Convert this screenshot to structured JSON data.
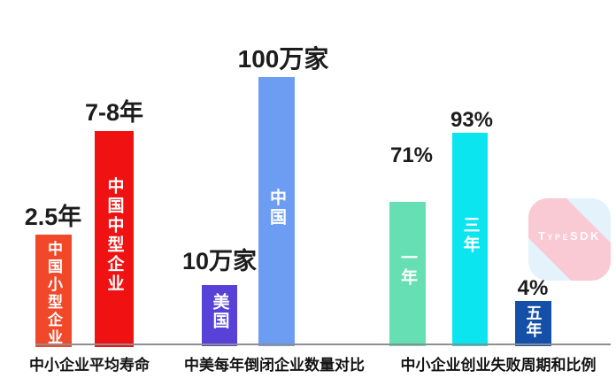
{
  "page": {
    "background": "#ffffff",
    "axis_line_color": "#8e8e8e"
  },
  "chart_data": {
    "type": "bar",
    "title": "",
    "orientation": "vertical",
    "grid": false,
    "legend": false,
    "groups": [
      {
        "axis_label": "中小企业平均寿命",
        "bars": [
          {
            "value_label": "2.5年",
            "value": 2.5,
            "unit": "年",
            "bar_label": "中国小型企业",
            "color": "#f2482a"
          },
          {
            "value_label": "7-8年",
            "value": "7-8",
            "unit": "年",
            "bar_label": "中国中型企业",
            "color": "#f01212"
          }
        ]
      },
      {
        "axis_label": "中美每年倒闭企业数量对比",
        "bars": [
          {
            "value_label": "10万家",
            "value": 100000,
            "unit": "家",
            "bar_label": "美国",
            "color": "#5841d6"
          },
          {
            "value_label": "100万家",
            "value": 1000000,
            "unit": "家",
            "bar_label": "中国",
            "color": "#6d9df2"
          }
        ]
      },
      {
        "axis_label": "中小企业创业失败周期和比例",
        "bars": [
          {
            "value_label": "71%",
            "value": 71,
            "unit": "%",
            "bar_label": "一年",
            "color": "#67dfb5"
          },
          {
            "value_label": "93%",
            "value": 93,
            "unit": "%",
            "bar_label": "三年",
            "color": "#0ae5ef"
          },
          {
            "value_label": "4%",
            "value": 4,
            "unit": "%",
            "bar_label": "五年",
            "color": "#1450a8"
          }
        ]
      }
    ]
  },
  "watermark": {
    "text": "TypeSDK",
    "pink": "#f9c9d4",
    "light_blue": "#e3f2fb"
  }
}
